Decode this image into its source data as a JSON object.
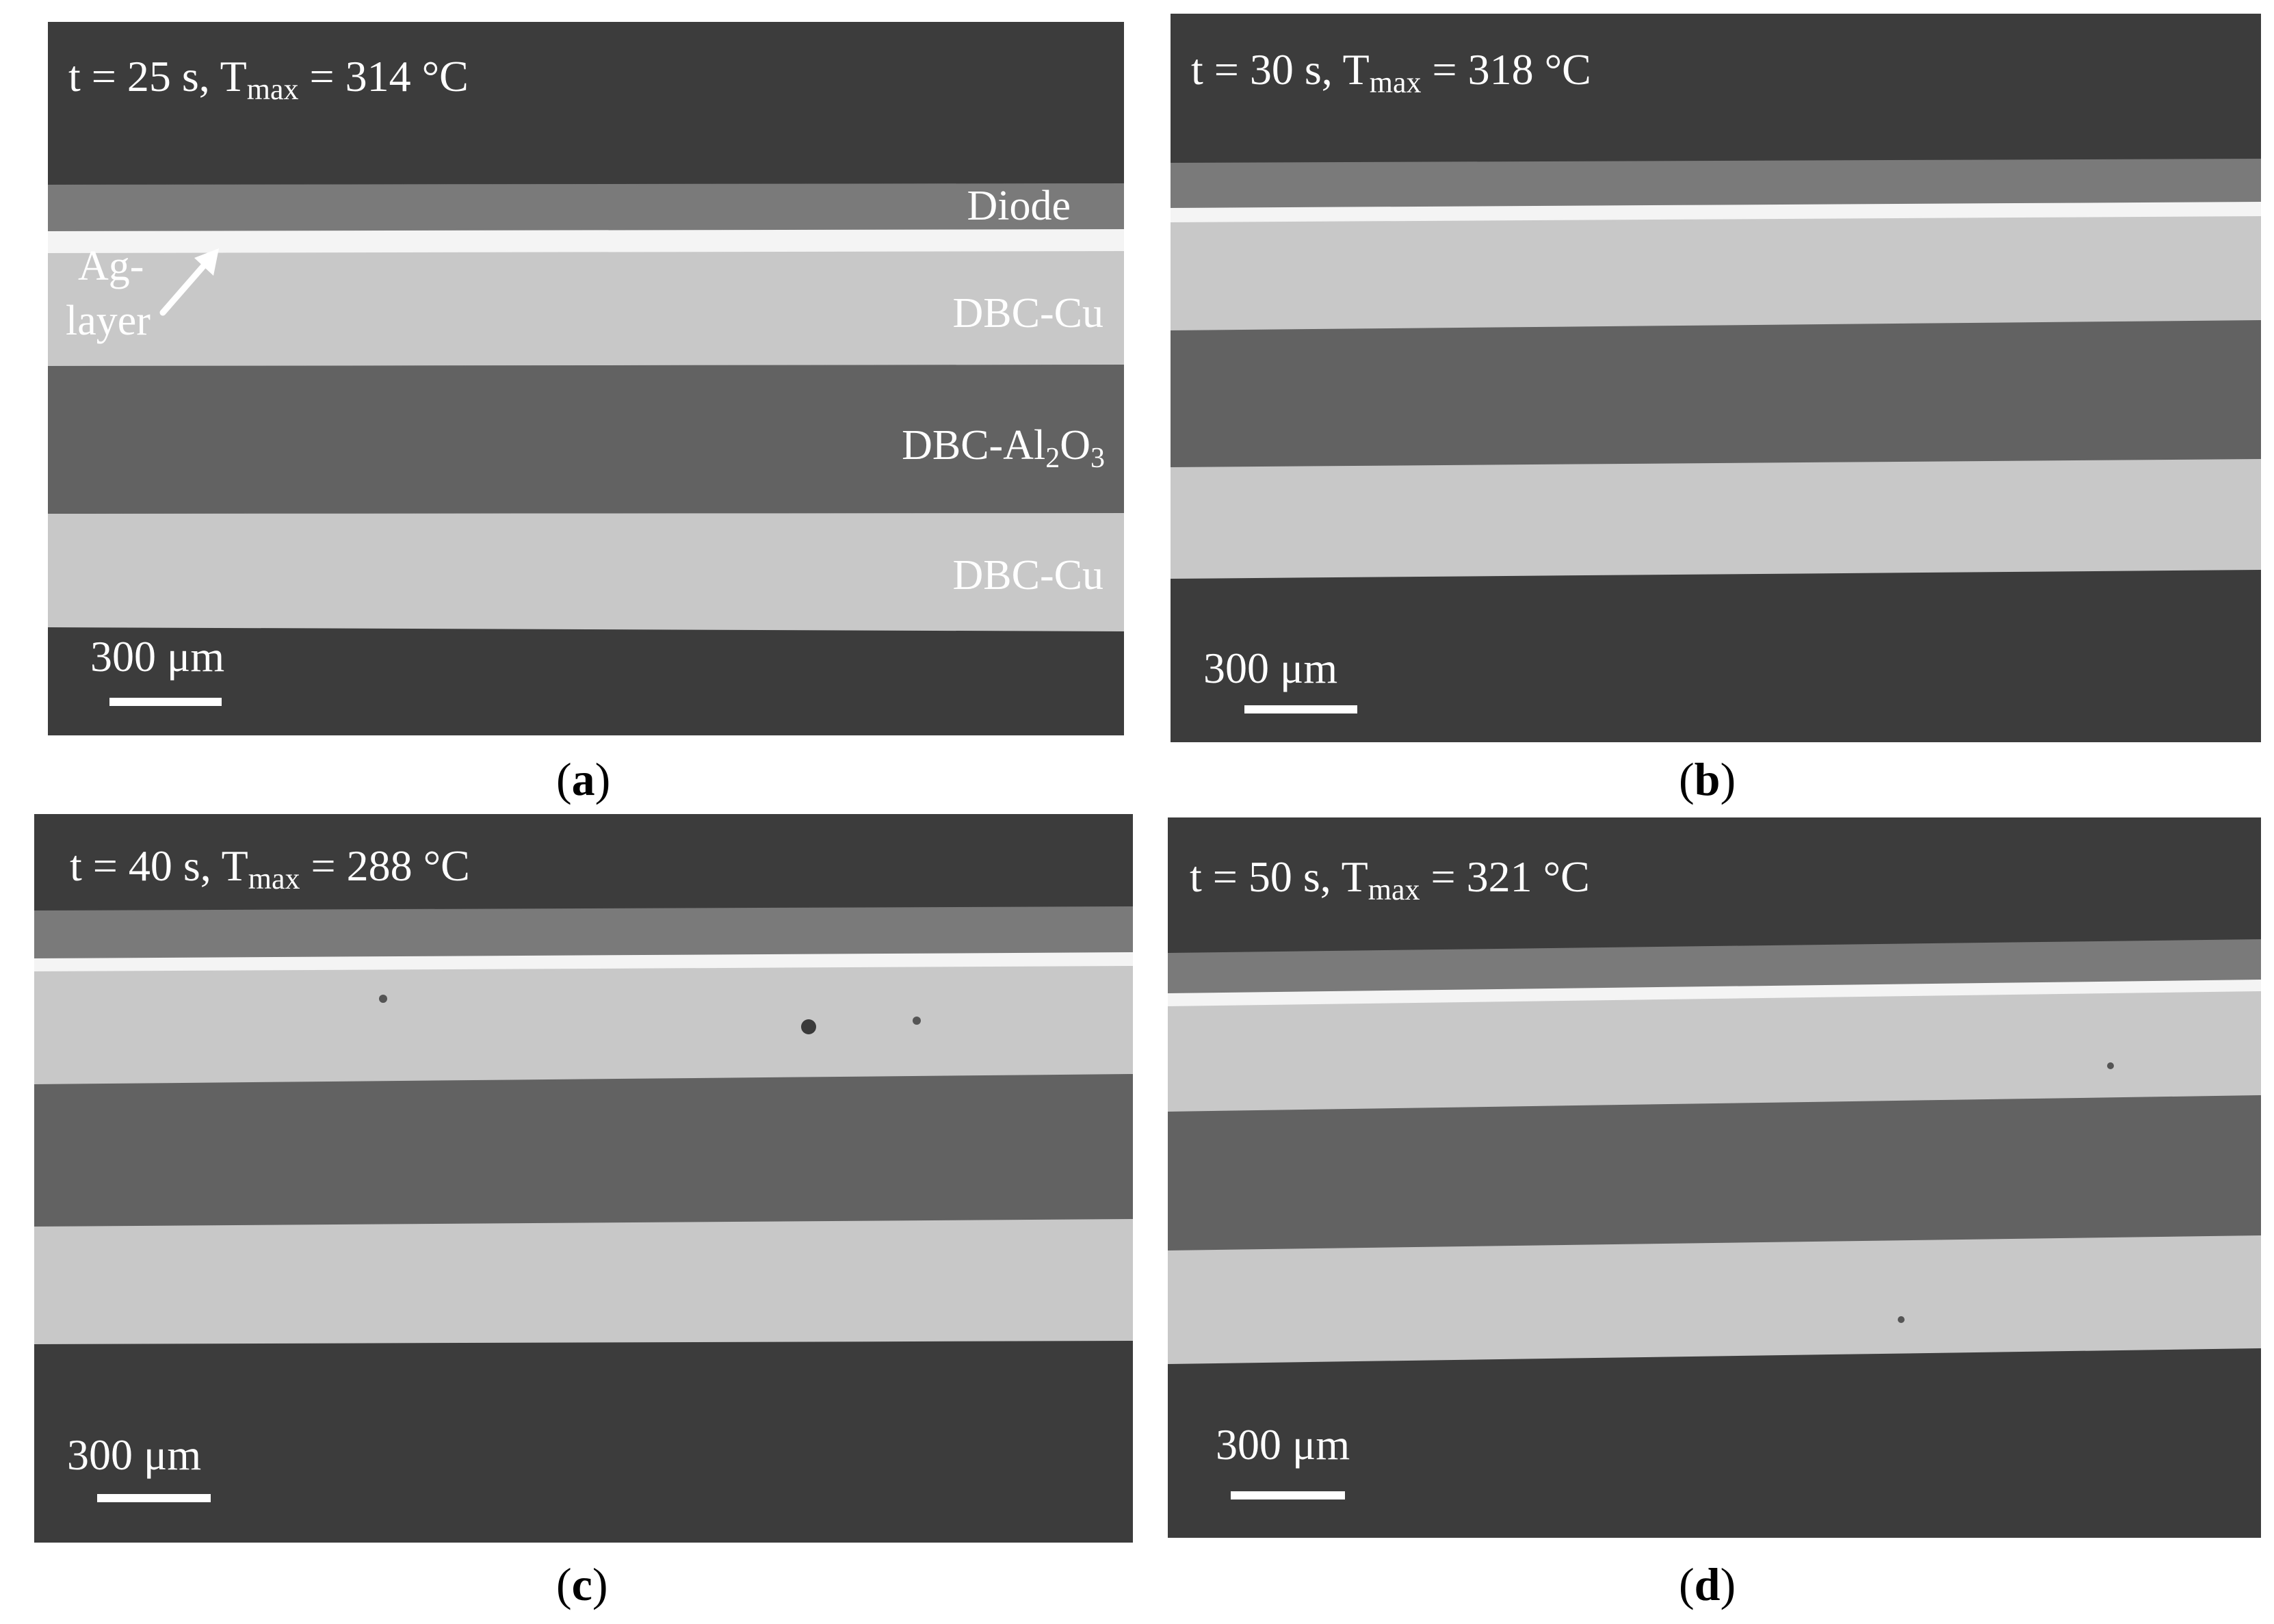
{
  "panels": [
    {
      "condition": {
        "t_label": "t",
        "t_value": "25 s",
        "T_base": "T",
        "T_sub": "max",
        "T_value": "314 °C"
      },
      "scale_bar": "300 μm",
      "caption": "a",
      "layer_labels": {
        "diode": "Diode",
        "ag_layer_line1": "Ag-",
        "ag_layer_line2": "layer",
        "dbc_cu_top": "DBC-Cu",
        "dbc_al2o3_prefix": "DBC-Al",
        "dbc_al2o3_sub1": "2",
        "dbc_al2o3_mid": "O",
        "dbc_al2o3_sub2": "3",
        "dbc_cu_bottom": "DBC-Cu"
      }
    },
    {
      "condition": {
        "t_label": "t",
        "t_value": "30 s",
        "T_base": "T",
        "T_sub": "max",
        "T_value": "318 °C"
      },
      "scale_bar": "300 μm",
      "caption": "b"
    },
    {
      "condition": {
        "t_label": "t",
        "t_value": "40 s",
        "T_base": "T",
        "T_sub": "max",
        "T_value": "288 °C"
      },
      "scale_bar": "300 μm",
      "caption": "c"
    },
    {
      "condition": {
        "t_label": "t",
        "t_value": "50 s",
        "T_base": "T",
        "T_sub": "max",
        "T_value": "321 °C"
      },
      "scale_bar": "300 μm",
      "caption": "d"
    }
  ],
  "colors": {
    "mount": "#3c3c3c",
    "diode": "#7a7a7a",
    "ag_layer": "#f4f4f4",
    "dbc_cu": "#c8c8c8",
    "dbc_al2o3": "#626262",
    "text": "#ffffff"
  }
}
